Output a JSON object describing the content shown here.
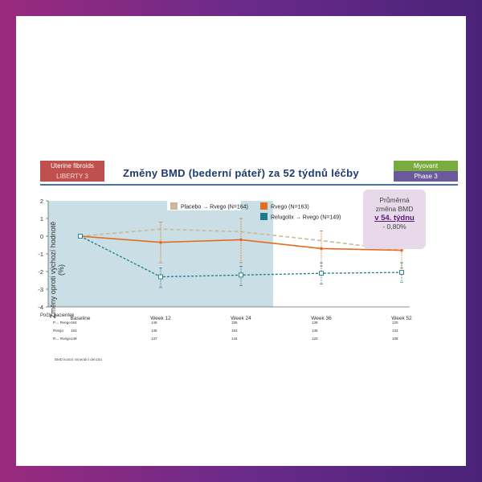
{
  "tags": {
    "left_top": "Uterine fibroids",
    "left_bottom": "LIBERTY 3",
    "right_top": "Myovant",
    "right_bottom": "Phase 3"
  },
  "title": "Změny BMD (bederní páteř) za 52 týdnů léčby",
  "callout": {
    "line1": "Průměrná",
    "line2": "změna BMD",
    "line3": "v 54. týdnu",
    "line4": "- 0,80%"
  },
  "footnote": "BMD kostní minerální denzita",
  "colors": {
    "placebo": "#c9b99a",
    "relugolix": "#1f7a8c",
    "rvego": "#e46c1f",
    "shading": "#b8d3dc"
  },
  "chart_data": {
    "type": "line",
    "ylabel": "Změny oproti výchozí hodnotě (%)",
    "ylim": [
      -4,
      2
    ],
    "yticks": [
      "2",
      "1",
      "0",
      "-1",
      "-2",
      "-3",
      "-4"
    ],
    "categories": [
      "Baseline",
      "Week 12",
      "Week 24",
      "Week 36",
      "Week 52"
    ],
    "series": [
      {
        "name": "Placebo → Rvego (N=164)",
        "values": [
          0,
          0.4,
          0.25,
          -0.25,
          -0.8
        ]
      },
      {
        "name": "Rvego (N=163)",
        "values": [
          0,
          -0.35,
          -0.2,
          -0.7,
          -0.8
        ]
      },
      {
        "name": "Relugolix → Rvego (N=149)",
        "values": [
          0,
          -2.3,
          -2.2,
          -2.1,
          -2.05
        ]
      }
    ],
    "error_bars": {
      "Rvego (N=163)": [
        [
          0,
          0
        ],
        [
          -1.5,
          0.8
        ],
        [
          -1.5,
          1.0
        ],
        [
          -1.7,
          0.3
        ],
        [
          -1.8,
          0.2
        ]
      ],
      "Relugolix → Rvego (N=149)": [
        [
          0,
          0
        ],
        [
          -2.9,
          -1.8
        ],
        [
          -2.8,
          -1.7
        ],
        [
          -2.7,
          -1.5
        ],
        [
          -2.6,
          -1.5
        ]
      ]
    },
    "patients_label": "Počty pacientek",
    "patient_rows": [
      {
        "label": "P→ Rvego",
        "values": [
          "164",
          "146",
          "156",
          "138",
          "120"
        ]
      },
      {
        "label": "Rvego",
        "values": [
          "163",
          "145",
          "153",
          "145",
          "132"
        ]
      },
      {
        "label": "R→ Rvego",
        "values": [
          "149",
          "137",
          "144",
          "120",
          "108"
        ]
      }
    ]
  }
}
